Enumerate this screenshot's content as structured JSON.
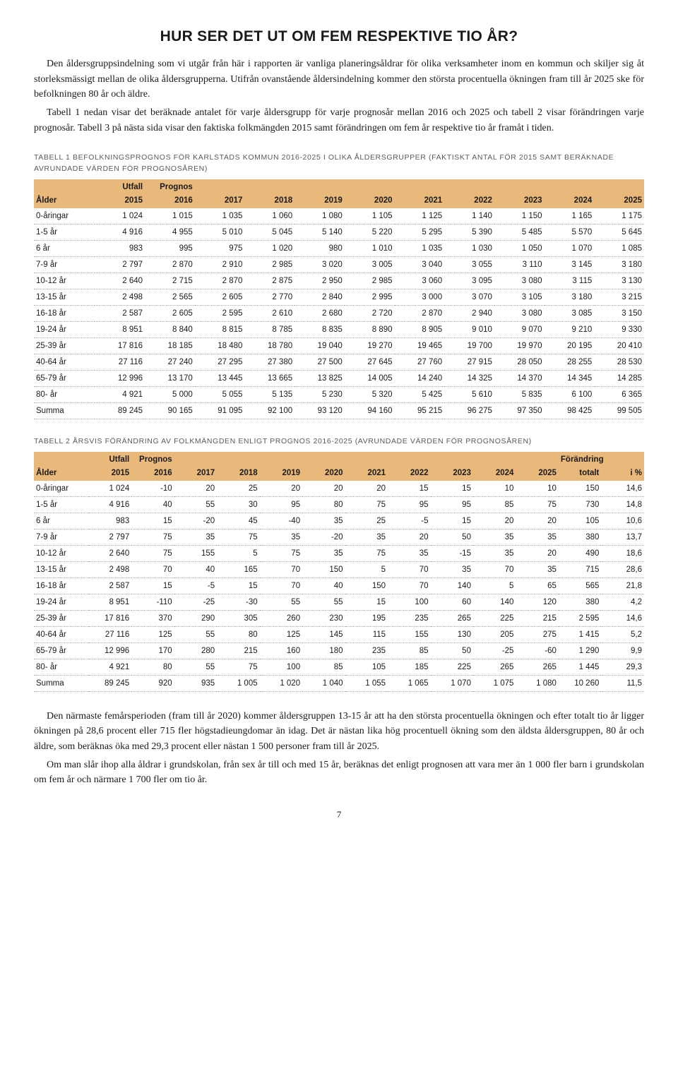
{
  "title": "HUR SER DET UT OM FEM RESPEKTIVE TIO ÅR?",
  "paragraphs_top": [
    "Den åldersgruppsindelning som vi utgår från här i rapporten är vanliga planeringsåldrar för olika verksamheter inom en kommun och skiljer sig åt storleksmässigt mellan de olika åldersgrupperna. Utifrån ovanstående åldersindelning kommer den största procentuella ökningen fram till år 2025 ske för befolkningen 80 år och äldre.",
    "Tabell 1 nedan visar det beräknade antalet för varje åldersgrupp för varje prognosår mellan 2016 och 2025 och tabell 2 visar förändringen varje prognosår. Tabell 3 på nästa sida visar den faktiska folkmängden 2015 samt förändringen om fem år respektive tio år framåt i tiden."
  ],
  "table1": {
    "caption": "TABELL 1  BEFOLKNINGSPROGNOS FÖR KARLSTADS KOMMUN 2016-2025 I OLIKA ÅLDERSGRUPPER (FAKTISKT ANTAL FÖR 2015 SAMT BERÄKNADE AVRUNDADE VÄRDEN FÖR PROGNOSÅREN)",
    "header_bg": "#e8b97a",
    "hdr_top": [
      "",
      "Utfall",
      "Prognos",
      "",
      "",
      "",
      "",
      "",
      "",
      "",
      "",
      ""
    ],
    "hdr_years": [
      "Ålder",
      "2015",
      "2016",
      "2017",
      "2018",
      "2019",
      "2020",
      "2021",
      "2022",
      "2023",
      "2024",
      "2025"
    ],
    "rows": [
      [
        "0-åringar",
        "1 024",
        "1 015",
        "1 035",
        "1 060",
        "1 080",
        "1 105",
        "1 125",
        "1 140",
        "1 150",
        "1 165",
        "1 175"
      ],
      [
        "1-5 år",
        "4 916",
        "4 955",
        "5 010",
        "5 045",
        "5 140",
        "5 220",
        "5 295",
        "5 390",
        "5 485",
        "5 570",
        "5 645"
      ],
      [
        "6 år",
        "983",
        "995",
        "975",
        "1 020",
        "980",
        "1 010",
        "1 035",
        "1 030",
        "1 050",
        "1 070",
        "1 085"
      ],
      [
        "7-9 år",
        "2 797",
        "2 870",
        "2 910",
        "2 985",
        "3 020",
        "3 005",
        "3 040",
        "3 055",
        "3 110",
        "3 145",
        "3 180"
      ],
      [
        "10-12 år",
        "2 640",
        "2 715",
        "2 870",
        "2 875",
        "2 950",
        "2 985",
        "3 060",
        "3 095",
        "3 080",
        "3 115",
        "3 130"
      ],
      [
        "13-15 år",
        "2 498",
        "2 565",
        "2 605",
        "2 770",
        "2 840",
        "2 995",
        "3 000",
        "3 070",
        "3 105",
        "3 180",
        "3 215"
      ],
      [
        "16-18 år",
        "2 587",
        "2 605",
        "2 595",
        "2 610",
        "2 680",
        "2 720",
        "2 870",
        "2 940",
        "3 080",
        "3 085",
        "3 150"
      ],
      [
        "19-24 år",
        "8 951",
        "8 840",
        "8 815",
        "8 785",
        "8 835",
        "8 890",
        "8 905",
        "9 010",
        "9 070",
        "9 210",
        "9 330"
      ],
      [
        "25-39 år",
        "17 816",
        "18 185",
        "18 480",
        "18 780",
        "19 040",
        "19 270",
        "19 465",
        "19 700",
        "19 970",
        "20 195",
        "20 410"
      ],
      [
        "40-64 år",
        "27 116",
        "27 240",
        "27 295",
        "27 380",
        "27 500",
        "27 645",
        "27 760",
        "27 915",
        "28 050",
        "28 255",
        "28 530"
      ],
      [
        "65-79 år",
        "12 996",
        "13 170",
        "13 445",
        "13 665",
        "13 825",
        "14 005",
        "14 240",
        "14 325",
        "14 370",
        "14 345",
        "14 285"
      ],
      [
        "80- år",
        "4 921",
        "5 000",
        "5 055",
        "5 135",
        "5 230",
        "5 320",
        "5 425",
        "5 610",
        "5 835",
        "6 100",
        "6 365"
      ],
      [
        "Summa",
        "89 245",
        "90 165",
        "91 095",
        "92 100",
        "93 120",
        "94 160",
        "95 215",
        "96 275",
        "97 350",
        "98 425",
        "99 505"
      ]
    ]
  },
  "table2": {
    "caption": "TABELL 2  ÅRSVIS FÖRÄNDRING AV FOLKMÄNGDEN ENLIGT PROGNOS 2016-2025 (AVRUNDADE VÄRDEN FÖR PROGNOSÅREN)",
    "header_bg": "#e8b97a",
    "hdr_top": [
      "",
      "Utfall",
      "Prognos",
      "",
      "",
      "",
      "",
      "",
      "",
      "",
      "",
      "",
      "Förändring",
      ""
    ],
    "hdr_years": [
      "Ålder",
      "2015",
      "2016",
      "2017",
      "2018",
      "2019",
      "2020",
      "2021",
      "2022",
      "2023",
      "2024",
      "2025",
      "totalt",
      "i %"
    ],
    "rows": [
      [
        "0-åringar",
        "1 024",
        "-10",
        "20",
        "25",
        "20",
        "20",
        "20",
        "15",
        "15",
        "10",
        "10",
        "150",
        "14,6"
      ],
      [
        "1-5 år",
        "4 916",
        "40",
        "55",
        "30",
        "95",
        "80",
        "75",
        "95",
        "95",
        "85",
        "75",
        "730",
        "14,8"
      ],
      [
        "6 år",
        "983",
        "15",
        "-20",
        "45",
        "-40",
        "35",
        "25",
        "-5",
        "15",
        "20",
        "20",
        "105",
        "10,6"
      ],
      [
        "7-9 år",
        "2 797",
        "75",
        "35",
        "75",
        "35",
        "-20",
        "35",
        "20",
        "50",
        "35",
        "35",
        "380",
        "13,7"
      ],
      [
        "10-12 år",
        "2 640",
        "75",
        "155",
        "5",
        "75",
        "35",
        "75",
        "35",
        "-15",
        "35",
        "20",
        "490",
        "18,6"
      ],
      [
        "13-15 år",
        "2 498",
        "70",
        "40",
        "165",
        "70",
        "150",
        "5",
        "70",
        "35",
        "70",
        "35",
        "715",
        "28,6"
      ],
      [
        "16-18 år",
        "2 587",
        "15",
        "-5",
        "15",
        "70",
        "40",
        "150",
        "70",
        "140",
        "5",
        "65",
        "565",
        "21,8"
      ],
      [
        "19-24 år",
        "8 951",
        "-110",
        "-25",
        "-30",
        "55",
        "55",
        "15",
        "100",
        "60",
        "140",
        "120",
        "380",
        "4,2"
      ],
      [
        "25-39 år",
        "17 816",
        "370",
        "290",
        "305",
        "260",
        "230",
        "195",
        "235",
        "265",
        "225",
        "215",
        "2 595",
        "14,6"
      ],
      [
        "40-64 år",
        "27 116",
        "125",
        "55",
        "80",
        "125",
        "145",
        "115",
        "155",
        "130",
        "205",
        "275",
        "1 415",
        "5,2"
      ],
      [
        "65-79 år",
        "12 996",
        "170",
        "280",
        "215",
        "160",
        "180",
        "235",
        "85",
        "50",
        "-25",
        "-60",
        "1 290",
        "9,9"
      ],
      [
        "80- år",
        "4 921",
        "80",
        "55",
        "75",
        "100",
        "85",
        "105",
        "185",
        "225",
        "265",
        "265",
        "1 445",
        "29,3"
      ],
      [
        "Summa",
        "89 245",
        "920",
        "935",
        "1 005",
        "1 020",
        "1 040",
        "1 055",
        "1 065",
        "1 070",
        "1 075",
        "1 080",
        "10 260",
        "11,5"
      ]
    ]
  },
  "paragraphs_bottom": [
    "Den närmaste femårsperioden (fram till år 2020) kommer åldersgruppen 13-15 år att ha den största procentuella ökningen och efter totalt tio år ligger ökningen på 28,6 procent eller 715 fler högstadieungdomar än idag. Det är nästan lika hög procentuell ökning som den äldsta åldersgruppen, 80 år och äldre, som beräknas öka med 29,3 procent eller nästan 1 500 personer fram till år 2025.",
    "Om man slår ihop alla åldrar i grundskolan, från sex år till och med 15 år, beräknas det enligt prognosen att vara mer än 1 000 fler barn i grundskolan om fem år och närmare 1 700 fler om tio år."
  ],
  "page_number": "7"
}
